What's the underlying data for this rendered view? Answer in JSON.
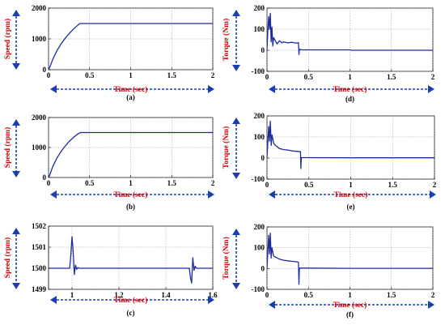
{
  "figure": {
    "colors": {
      "trace": "#1c2ba0",
      "label": "#d40000",
      "arrow": "#1a3fb5"
    }
  },
  "chart_data": [
    {
      "id": "a",
      "type": "line",
      "caption": "(a)",
      "xlabel": "Time (sec)",
      "ylabel": "Speed (rpm)",
      "xlim": [
        0,
        2
      ],
      "ylim": [
        0,
        2000
      ],
      "xticks": [
        0,
        0.5,
        1,
        1.5,
        2
      ],
      "xtick_labels": [
        "0",
        "0.5",
        "1",
        "1.5",
        "2"
      ],
      "yticks": [
        0,
        1000,
        2000
      ],
      "ytick_labels": [
        "0",
        "1000",
        "2000"
      ],
      "grid": true,
      "series": [
        {
          "x": [
            0,
            0.02,
            0.05,
            0.1,
            0.15,
            0.2,
            0.25,
            0.3,
            0.35,
            0.38,
            0.5,
            1.0,
            1.5,
            2.0
          ],
          "y": [
            0,
            110,
            330,
            610,
            830,
            1010,
            1170,
            1310,
            1430,
            1500,
            1500,
            1500,
            1500,
            1500
          ]
        }
      ]
    },
    {
      "id": "d",
      "type": "line",
      "caption": "(d)",
      "xlabel": "Time (sec)",
      "ylabel": "Torque (Nm)",
      "xlim": [
        0,
        2
      ],
      "ylim": [
        -100,
        200
      ],
      "xticks": [
        0,
        0.5,
        1,
        1.5,
        2
      ],
      "xtick_labels": [
        "0",
        "0.5",
        "1",
        "1.5",
        "2"
      ],
      "yticks": [
        -100,
        0,
        100,
        200
      ],
      "ytick_labels": [
        "-100",
        "0",
        "100",
        "200"
      ],
      "grid": true,
      "series": [
        {
          "x": [
            0,
            0.01,
            0.02,
            0.03,
            0.04,
            0.05,
            0.06,
            0.07,
            0.08,
            0.1,
            0.12,
            0.15,
            0.18,
            0.2,
            0.25,
            0.3,
            0.35,
            0.38,
            0.385,
            0.39,
            0.4,
            0.42,
            0.5,
            1.0,
            1.02,
            1.5,
            2.0
          ],
          "y": [
            0,
            90,
            160,
            100,
            175,
            40,
            110,
            20,
            60,
            45,
            30,
            45,
            35,
            40,
            35,
            38,
            34,
            36,
            -20,
            5,
            3,
            2,
            2,
            2,
            0,
            0,
            0
          ]
        }
      ]
    },
    {
      "id": "b",
      "type": "line",
      "caption": "(b)",
      "xlabel": "Time (sec)",
      "ylabel": "Speed (rpm)",
      "xlim": [
        0,
        2
      ],
      "ylim": [
        0,
        2000
      ],
      "xticks": [
        0,
        0.5,
        1,
        1.5,
        2
      ],
      "xtick_labels": [
        "0",
        "0.5",
        "1",
        "1.5",
        "2"
      ],
      "yticks": [
        0,
        1000,
        2000
      ],
      "ytick_labels": [
        "0",
        "1000",
        "2000"
      ],
      "grid": true,
      "series": [
        {
          "x": [
            0,
            0.02,
            0.05,
            0.1,
            0.15,
            0.2,
            0.25,
            0.3,
            0.35,
            0.39,
            0.5,
            1.0,
            1.5,
            2.0
          ],
          "y": [
            0,
            120,
            360,
            640,
            860,
            1040,
            1200,
            1330,
            1440,
            1500,
            1500,
            1500,
            1500,
            1500
          ]
        }
      ]
    },
    {
      "id": "e",
      "type": "line",
      "caption": "(e)",
      "xlabel": "Time (sec)",
      "ylabel": "Torque (Nm)",
      "xlim": [
        0,
        2
      ],
      "ylim": [
        -100,
        200
      ],
      "xticks": [
        0,
        0.5,
        1,
        1.5,
        2
      ],
      "xtick_labels": [
        "0",
        "0.5",
        "1",
        "1.5",
        "2"
      ],
      "yticks": [
        -100,
        0,
        100,
        200
      ],
      "ytick_labels": [
        "-100",
        "0",
        "100",
        "200"
      ],
      "grid": true,
      "series": [
        {
          "x": [
            0,
            0.02,
            0.03,
            0.04,
            0.05,
            0.06,
            0.08,
            0.1,
            0.15,
            0.2,
            0.25,
            0.3,
            0.35,
            0.4,
            0.405,
            0.41,
            0.42,
            0.5,
            1.0,
            1.5,
            2.0
          ],
          "y": [
            0,
            150,
            80,
            175,
            60,
            110,
            70,
            60,
            45,
            40,
            38,
            34,
            32,
            30,
            -50,
            2,
            2,
            2,
            1,
            1,
            1
          ]
        }
      ]
    },
    {
      "id": "c",
      "type": "line",
      "caption": "(c)",
      "xlabel": "Time (sec)",
      "ylabel": "Speed (rpm)",
      "xlim": [
        0.9,
        1.6
      ],
      "ylim": [
        1499,
        1502
      ],
      "xticks": [
        1,
        1.2,
        1.4,
        1.6
      ],
      "xtick_labels": [
        "1",
        "1.2",
        "1.4",
        "1.6"
      ],
      "yticks": [
        1499,
        1500,
        1501,
        1502
      ],
      "ytick_labels": [
        "1499",
        "1500",
        "1501",
        "1502"
      ],
      "grid": true,
      "series": [
        {
          "x": [
            0.9,
            0.99,
            0.995,
            1.0,
            1.005,
            1.01,
            1.015,
            1.02,
            1.025,
            1.03,
            1.1,
            1.3,
            1.5,
            1.505,
            1.51,
            1.515,
            1.52,
            1.525,
            1.53,
            1.6
          ],
          "y": [
            1500,
            1500,
            1500.6,
            1501.5,
            1500.8,
            1499.7,
            1500.15,
            1499.95,
            1500.03,
            1500,
            1500,
            1500,
            1500,
            1499.55,
            1499.3,
            1500.5,
            1499.9,
            1500.1,
            1500,
            1500
          ]
        }
      ]
    },
    {
      "id": "f",
      "type": "line",
      "caption": "(f)",
      "xlabel": "Time (sec)",
      "ylabel": "Torque (Nm)",
      "xlim": [
        0,
        2
      ],
      "ylim": [
        -100,
        200
      ],
      "xticks": [
        0,
        0.5,
        1,
        1.5,
        2
      ],
      "xtick_labels": [
        "0",
        "0.5",
        "1",
        "1.5",
        "2"
      ],
      "yticks": [
        -100,
        0,
        100,
        200
      ],
      "ytick_labels": [
        "-100",
        "0",
        "100",
        "200"
      ],
      "grid": true,
      "series": [
        {
          "x": [
            0,
            0.02,
            0.03,
            0.04,
            0.05,
            0.06,
            0.08,
            0.1,
            0.15,
            0.2,
            0.25,
            0.3,
            0.35,
            0.38,
            0.385,
            0.39,
            0.4,
            0.5,
            1.0,
            1.5,
            2.0
          ],
          "y": [
            0,
            160,
            70,
            170,
            50,
            100,
            60,
            55,
            45,
            40,
            37,
            35,
            33,
            30,
            -75,
            2,
            2,
            2,
            1,
            1,
            1
          ]
        }
      ]
    }
  ]
}
